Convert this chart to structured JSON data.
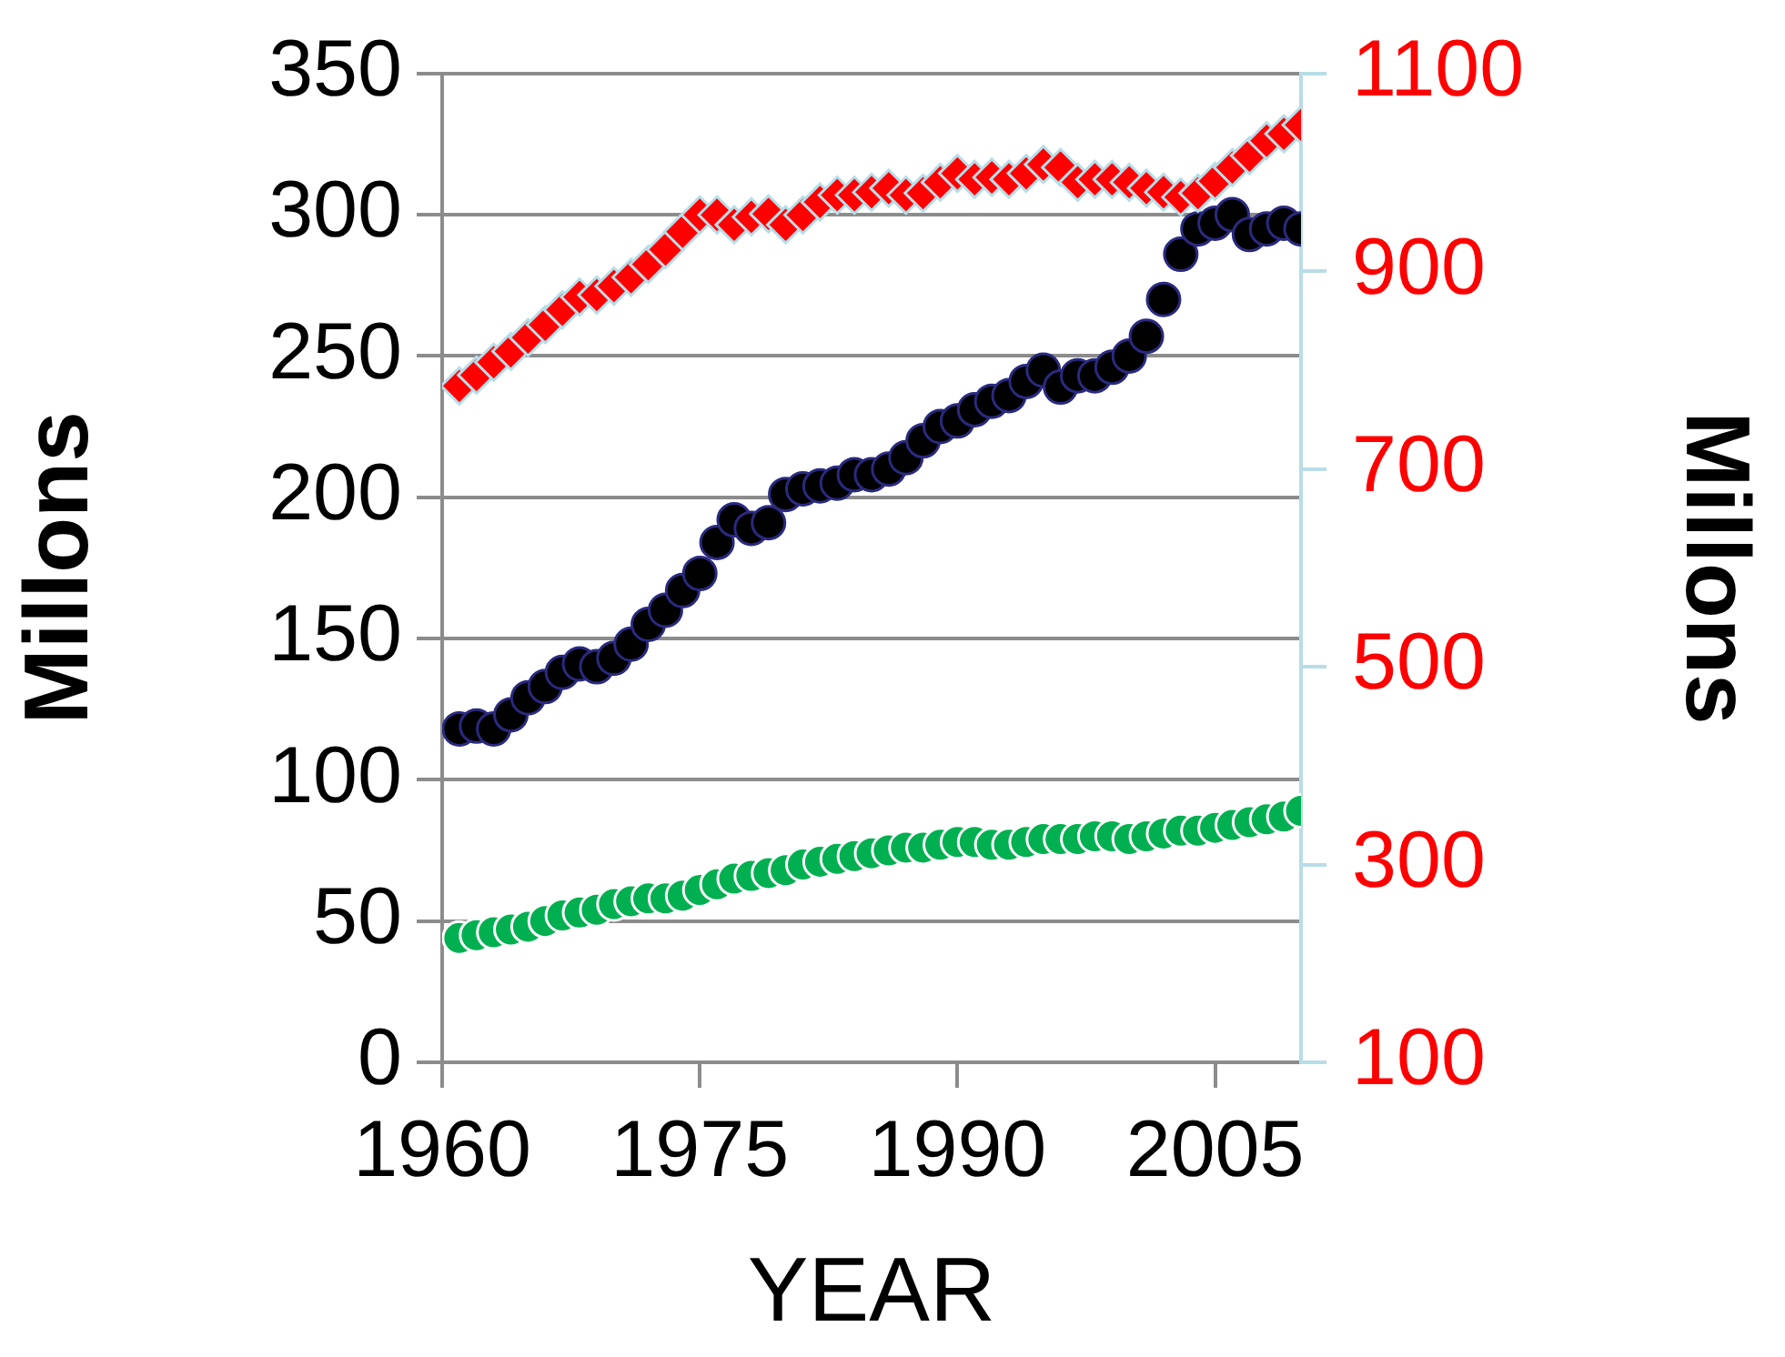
{
  "chart_data": {
    "type": "scatter",
    "xlabel": "YEAR",
    "ylabel": "Millons",
    "y2label": "Millons",
    "x": [
      1961,
      1962,
      1963,
      1964,
      1965,
      1966,
      1967,
      1968,
      1969,
      1970,
      1971,
      1972,
      1973,
      1974,
      1975,
      1976,
      1977,
      1978,
      1979,
      1980,
      1981,
      1982,
      1983,
      1984,
      1985,
      1986,
      1987,
      1988,
      1989,
      1990,
      1991,
      1992,
      1993,
      1994,
      1995,
      1996,
      1997,
      1998,
      1999,
      2000,
      2001,
      2002,
      2003,
      2004,
      2005,
      2006,
      2007,
      2008,
      2009,
      2010
    ],
    "xlim": [
      1960,
      2010
    ],
    "xticks": [
      1960,
      1975,
      1990,
      2005
    ],
    "ylim": [
      0,
      350
    ],
    "yticks": [
      0,
      50,
      100,
      150,
      200,
      250,
      300,
      350
    ],
    "y2lim": [
      100,
      1100
    ],
    "y2ticks": [
      100,
      300,
      500,
      700,
      900,
      1100
    ],
    "grid": "y",
    "legend": false,
    "series": [
      {
        "marker": "circle",
        "color": "#000000",
        "values": [
          118,
          119,
          118,
          123,
          129,
          133,
          138,
          141,
          140,
          143,
          148,
          155,
          160,
          167,
          173,
          184,
          192,
          189,
          191,
          201,
          203,
          204,
          205,
          208,
          208,
          210,
          214,
          220,
          225,
          227,
          231,
          234,
          236,
          241,
          245,
          239,
          243,
          243,
          246,
          250,
          257,
          270,
          286,
          295,
          297,
          300,
          293,
          295,
          297,
          295
        ]
      },
      {
        "type": "scatter",
        "marker": "diamond",
        "axis": "y2",
        "color": "#ff0000",
        "values": [
          784,
          795,
          808,
          819,
          833,
          846,
          861,
          874,
          876,
          885,
          894,
          907,
          922,
          940,
          957,
          957,
          947,
          955,
          958,
          947,
          957,
          970,
          977,
          977,
          980,
          984,
          977,
          979,
          990,
          999,
          993,
          995,
          993,
          999,
          1008,
          1005,
          990,
          993,
          993,
          990,
          984,
          980,
          975,
          979,
          991,
          1005,
          1017,
          1032,
          1039,
          1048
        ]
      },
      {
        "marker": "circle",
        "color": "#00b050",
        "values": [
          44,
          45,
          46,
          47,
          48,
          50,
          52,
          53,
          54,
          56,
          57,
          58,
          58,
          59,
          61,
          63,
          65,
          66,
          67,
          68,
          70,
          71,
          72,
          73,
          74,
          75,
          76,
          76,
          77,
          78,
          78,
          77,
          77,
          78,
          79,
          79,
          79,
          80,
          80,
          79,
          80,
          81,
          82,
          82,
          83,
          84,
          85,
          86,
          87,
          89
        ]
      }
    ]
  }
}
